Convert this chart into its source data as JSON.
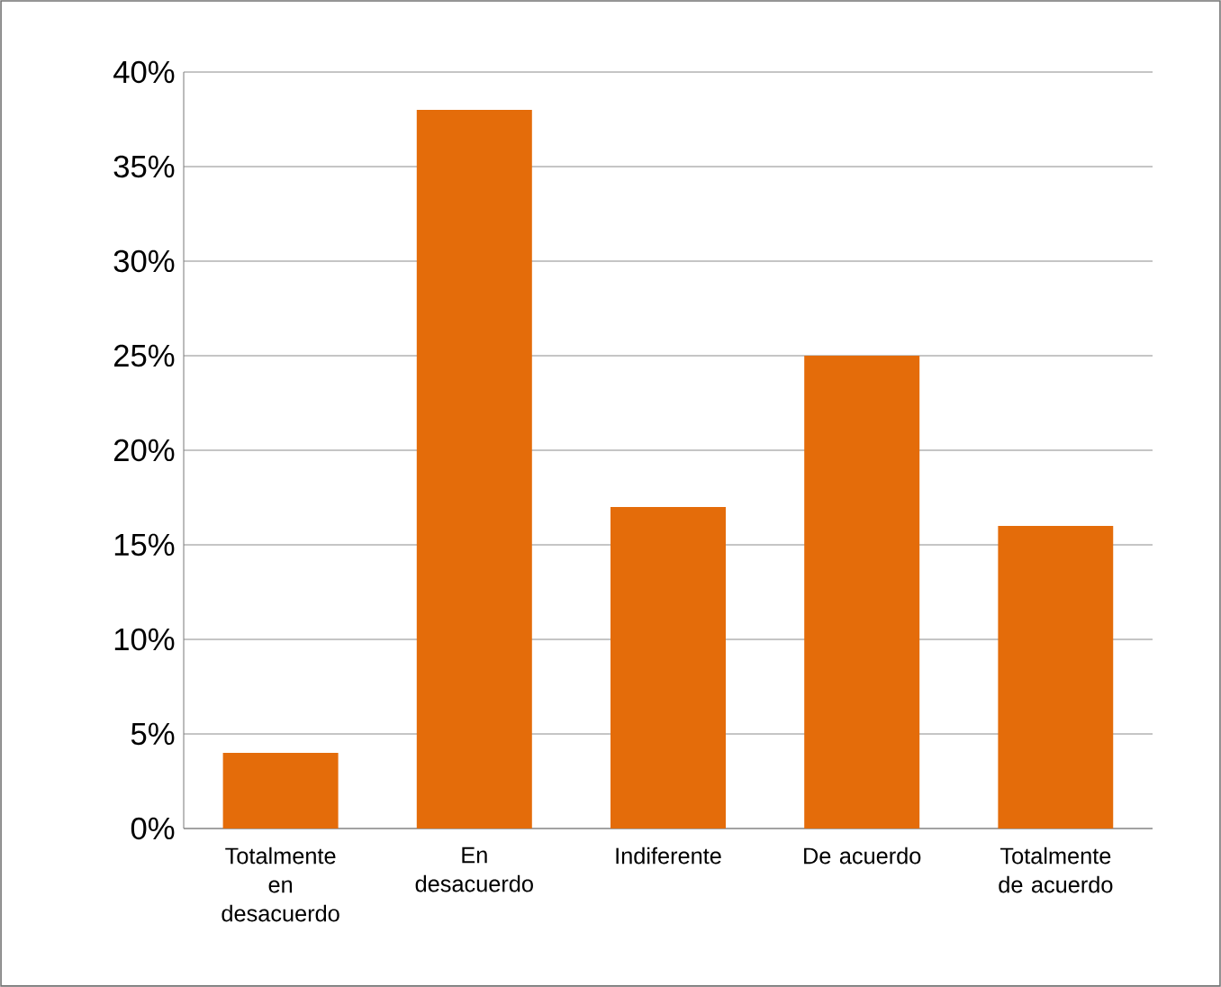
{
  "chart_data": {
    "type": "bar",
    "categories": [
      "Totalmente en desacuerdo",
      "En desacuerdo",
      "Indiferente",
      "De acuerdo",
      "Totalmente de acuerdo"
    ],
    "values": [
      4,
      38,
      17,
      25,
      16
    ],
    "color": "#e46c0a",
    "ylim": [
      0,
      40
    ],
    "yticks": [
      {
        "value": 0,
        "label": "0%"
      },
      {
        "value": 5,
        "label": "5%"
      },
      {
        "value": 10,
        "label": "10%"
      },
      {
        "value": 15,
        "label": "15%"
      },
      {
        "value": 20,
        "label": "20%"
      },
      {
        "value": 25,
        "label": "25%"
      },
      {
        "value": 30,
        "label": "30%"
      },
      {
        "value": 35,
        "label": "35%"
      },
      {
        "value": 40,
        "label": "40%"
      }
    ],
    "grid": "y"
  }
}
